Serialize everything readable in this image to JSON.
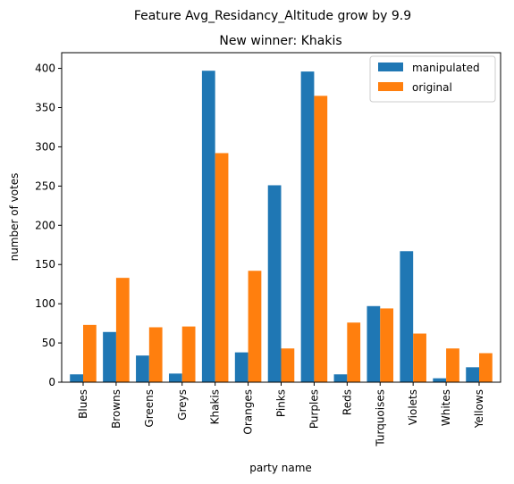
{
  "suptitle": "Feature Avg_Residancy_Altitude grow by 9.9",
  "chart_data": {
    "type": "bar",
    "title": "New winner: Khakis",
    "xlabel": "party name",
    "ylabel": "number of votes",
    "ylim": [
      0,
      420
    ],
    "yticks": [
      0,
      50,
      100,
      150,
      200,
      250,
      300,
      350,
      400
    ],
    "grid": false,
    "legend_position": "top-right",
    "categories": [
      "Blues",
      "Browns",
      "Greens",
      "Greys",
      "Khakis",
      "Oranges",
      "Pinks",
      "Purples",
      "Reds",
      "Turquoises",
      "Violets",
      "Whites",
      "Yellows"
    ],
    "series": [
      {
        "name": "manipulated",
        "color": "#1f77b4",
        "values": [
          10,
          64,
          34,
          11,
          397,
          38,
          251,
          396,
          10,
          97,
          167,
          5,
          19
        ]
      },
      {
        "name": "original",
        "color": "#ff7f0e",
        "values": [
          73,
          133,
          70,
          71,
          292,
          142,
          43,
          365,
          76,
          94,
          62,
          43,
          37
        ]
      }
    ]
  }
}
